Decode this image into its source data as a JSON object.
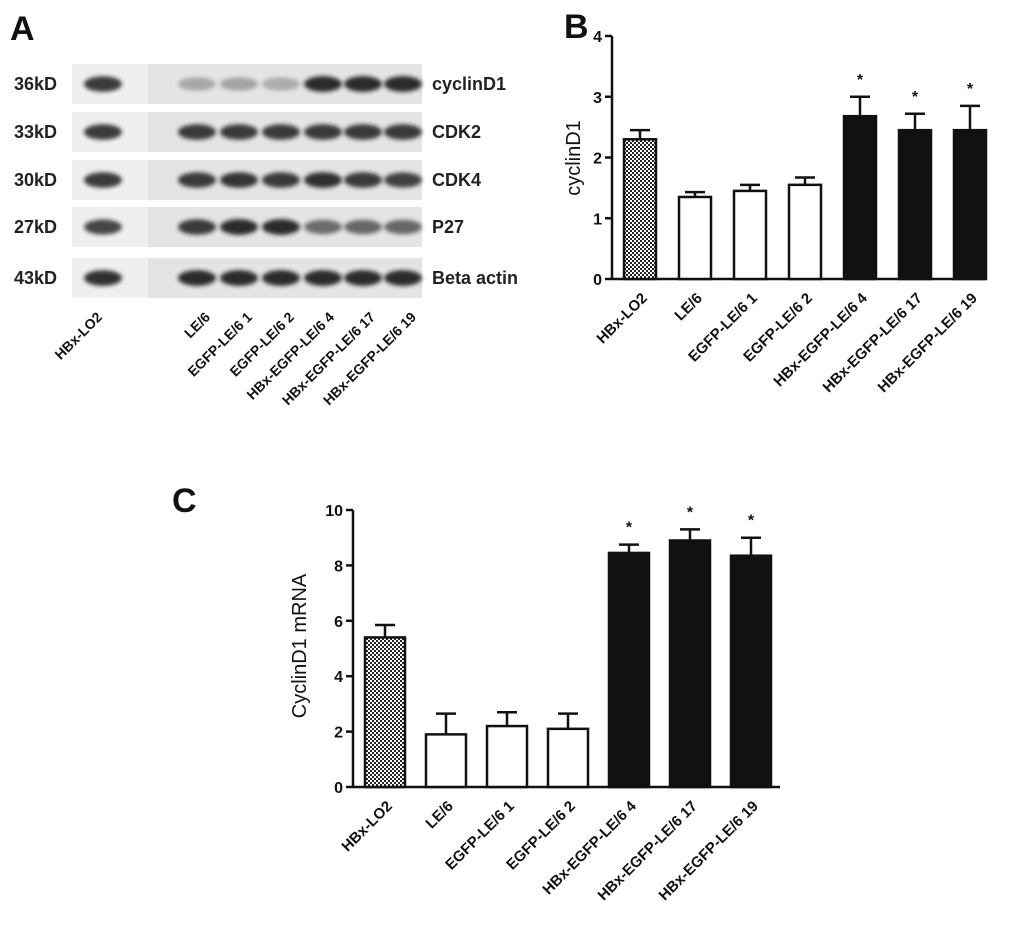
{
  "panels": {
    "a": "A",
    "b": "B",
    "c": "C"
  },
  "blot": {
    "rows": [
      {
        "kd": "36kD",
        "protein": "cyclinD1",
        "intensity": [
          0.85,
          0,
          0.3,
          0.32,
          0.28,
          0.92,
          0.92,
          0.92
        ]
      },
      {
        "kd": "33kD",
        "protein": "CDK2",
        "intensity": [
          0.85,
          0,
          0.85,
          0.85,
          0.85,
          0.85,
          0.85,
          0.85
        ]
      },
      {
        "kd": "30kD",
        "protein": "CDK4",
        "intensity": [
          0.85,
          0,
          0.85,
          0.88,
          0.85,
          0.9,
          0.85,
          0.82
        ]
      },
      {
        "kd": "27kD",
        "protein": "P27",
        "intensity": [
          0.8,
          0,
          0.85,
          0.92,
          0.92,
          0.6,
          0.62,
          0.62
        ]
      },
      {
        "kd": "43kD",
        "protein": "Beta actin",
        "intensity": [
          0.9,
          0,
          0.92,
          0.92,
          0.92,
          0.92,
          0.92,
          0.92
        ]
      }
    ],
    "lanes": [
      "HBx-LO2",
      "LE/6",
      "EGFP-LE/6 1",
      "EGFP-LE/6 2",
      "HBx-EGFP-LE/6 4",
      "HBx-EGFP-LE/6 17",
      "HBx-EGFP-LE/6 19"
    ]
  },
  "chart_data": [
    {
      "type": "bar",
      "panel": "B",
      "categories": [
        "HBx-LO2",
        "LE/6",
        "EGFP-LE/6 1",
        "EGFP-LE/6 2",
        "HBx-EGFP-LE/6 4",
        "HBx-EGFP-LE/6 17",
        "HBx-EGFP-LE/6 19"
      ],
      "values": [
        2.3,
        1.35,
        1.45,
        1.55,
        2.68,
        2.45,
        2.45
      ],
      "errors": [
        0.15,
        0.08,
        0.1,
        0.12,
        0.32,
        0.27,
        0.4
      ],
      "significance": [
        "",
        "",
        "",
        "",
        "*",
        "*",
        "*"
      ],
      "fills": [
        "checker",
        "white",
        "white",
        "white",
        "black",
        "black",
        "black"
      ],
      "ylabel": "cyclinD1",
      "ylim": [
        0,
        4
      ],
      "yticks": [
        "0",
        "1",
        "2",
        "3",
        "4"
      ],
      "grid": false
    },
    {
      "type": "bar",
      "panel": "C",
      "categories": [
        "HBx-LO2",
        "LE/6",
        "EGFP-LE/6 1",
        "EGFP-LE/6 2",
        "HBx-EGFP-LE/6 4",
        "HBx-EGFP-LE/6 17",
        "HBx-EGFP-LE/6 19"
      ],
      "values": [
        5.4,
        1.9,
        2.2,
        2.1,
        8.45,
        8.9,
        8.35
      ],
      "errors": [
        0.45,
        0.75,
        0.5,
        0.55,
        0.3,
        0.4,
        0.65
      ],
      "significance": [
        "",
        "",
        "",
        "",
        "*",
        "*",
        "*"
      ],
      "fills": [
        "checker",
        "white",
        "white",
        "white",
        "black",
        "black",
        "black"
      ],
      "ylabel": "CyclinD1 mRNA",
      "ylim": [
        0,
        10
      ],
      "yticks": [
        "0",
        "2",
        "4",
        "6",
        "8",
        "10"
      ],
      "grid": false
    }
  ],
  "colors": {
    "dark": "#111111",
    "band": "#1a1a1a",
    "membrane": "#efefef"
  }
}
